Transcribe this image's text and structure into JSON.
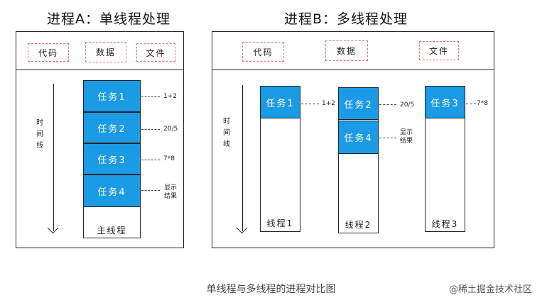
{
  "process_a": {
    "title": "进程A：单线程处理",
    "resources": [
      "代码",
      "数据",
      "文件"
    ],
    "timeline_label": [
      "时",
      "间",
      "线"
    ],
    "thread_label": "主线程",
    "tasks": [
      {
        "label": "任务1",
        "note": "1+2"
      },
      {
        "label": "任务2",
        "note": "20/5"
      },
      {
        "label": "任务3",
        "note": "7*8"
      },
      {
        "label": "任务4",
        "note": [
          "显示",
          "结果"
        ]
      }
    ]
  },
  "process_b": {
    "title": "进程B：多线程处理",
    "resources": [
      "代码",
      "数据",
      "文件"
    ],
    "timeline_label": [
      "时",
      "间",
      "线"
    ],
    "threads": [
      {
        "label": "线程1",
        "tasks": [
          {
            "label": "任务1",
            "note": "1+2"
          }
        ]
      },
      {
        "label": "线程2",
        "tasks": [
          {
            "label": "任务2",
            "note": "20/5"
          },
          {
            "label": "任务4",
            "note": [
              "显示",
              "结果"
            ]
          }
        ]
      },
      {
        "label": "线程3",
        "tasks": [
          {
            "label": "任务3",
            "note": "7*8"
          }
        ]
      }
    ]
  },
  "caption": "单线程与多线程的进程对比图",
  "watermark": "@稀土掘金技术社区",
  "colors": {
    "task_fill": "#1b9ae6",
    "resource_border": "#e0726f",
    "line": "#222222"
  }
}
